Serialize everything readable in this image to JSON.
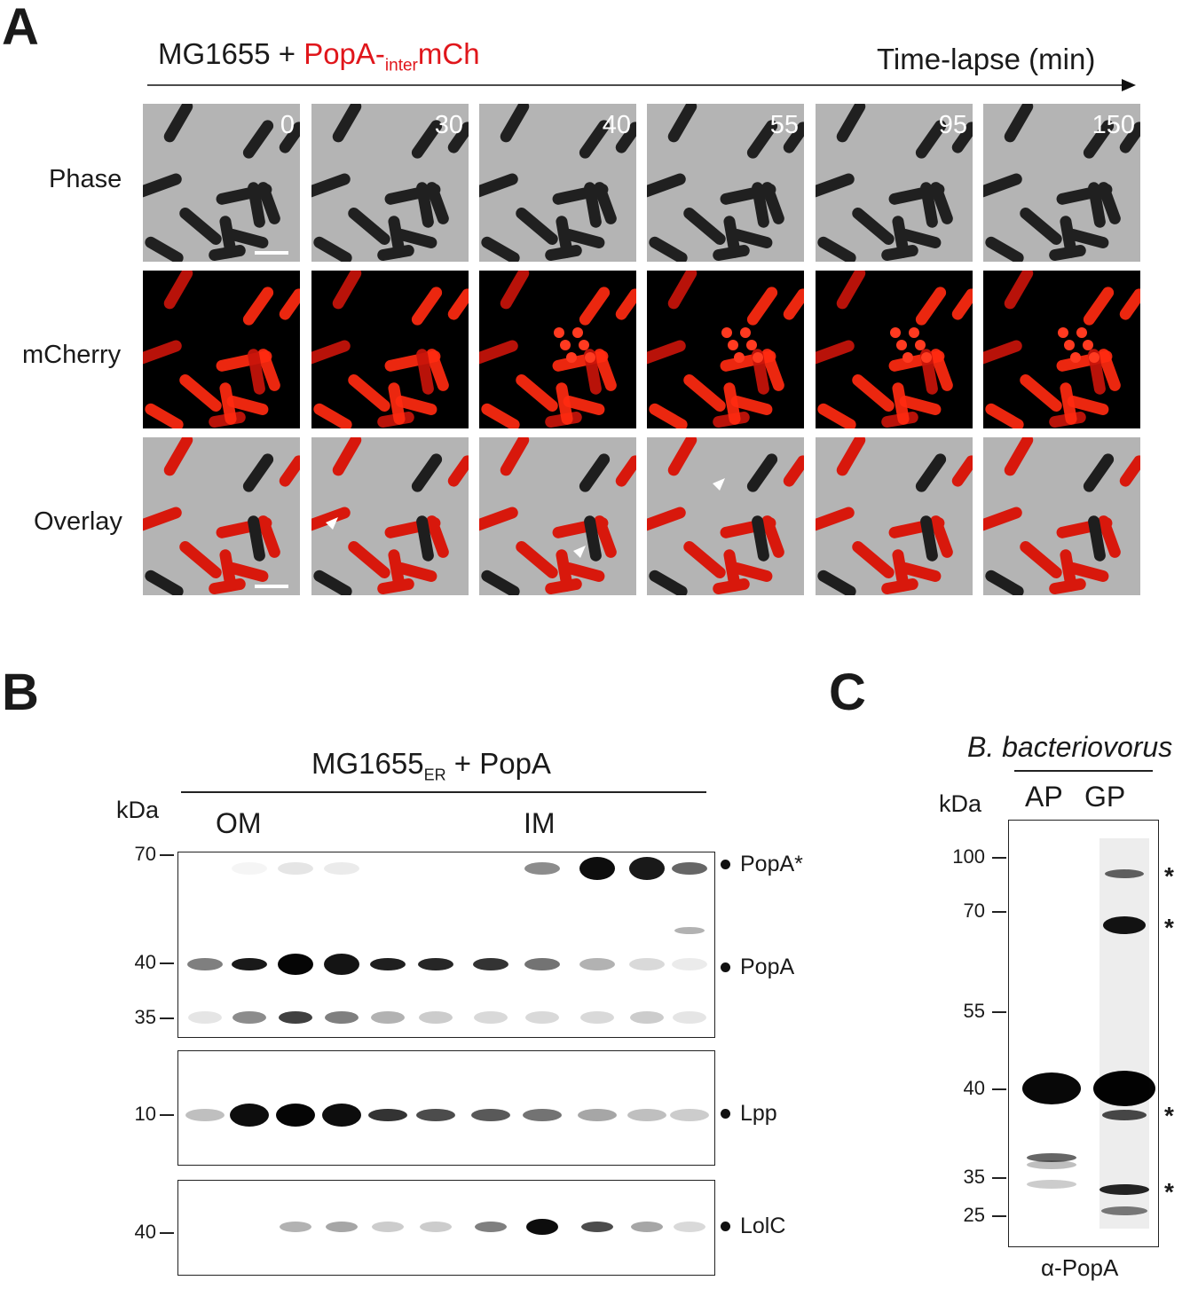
{
  "panels": {
    "a": "A",
    "b": "B",
    "c": "C"
  },
  "panel_a": {
    "strain": "MG1655 + ",
    "construct_main": "PopA-",
    "construct_sub": "inter",
    "construct_tail": "mCh",
    "axis_label": "Time-lapse (min)",
    "timepoints": [
      "0",
      "30",
      "40",
      "55",
      "95",
      "150"
    ],
    "rows": [
      "Phase",
      "mCherry",
      "Overlay"
    ],
    "colors": {
      "construct": "#e0161b",
      "fluor": "#ff2a10",
      "phase_bg": "#b4b4b4"
    }
  },
  "panel_b": {
    "title_main": "MG1655",
    "title_sub": "ER",
    "title_tail": " + PopA",
    "kda": "kDa",
    "om": "OM",
    "im": "IM",
    "blot1_ticks": [
      "70",
      "40",
      "35"
    ],
    "blot2_ticks": [
      "10"
    ],
    "blot3_ticks": [
      "40"
    ],
    "bands": [
      "PopA*",
      "PopA",
      "Lpp",
      "LolC"
    ]
  },
  "panel_c": {
    "species": "B. bacteriovorus",
    "kda": "kDa",
    "lanes": [
      "AP",
      "GP"
    ],
    "ticks": [
      "100",
      "70",
      "55",
      "40",
      "35",
      "25"
    ],
    "asterisk": "*",
    "antibody": "α-PopA"
  }
}
